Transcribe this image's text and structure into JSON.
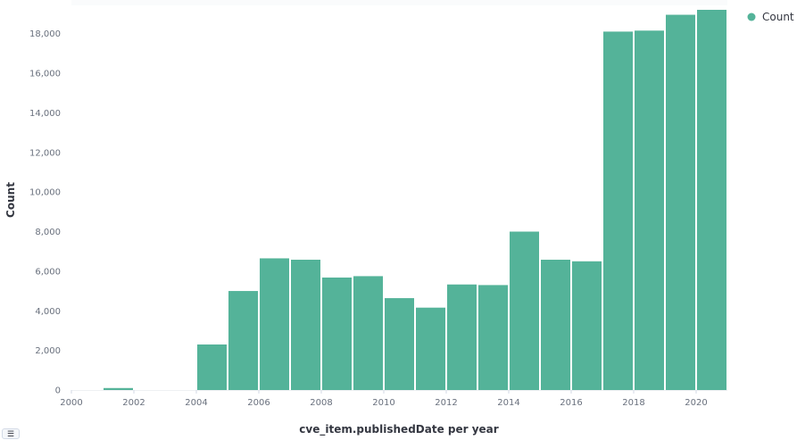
{
  "chart_data": {
    "type": "bar",
    "xlabel": "cve_item.publishedDate per year",
    "ylabel": "Count",
    "x": [
      2001,
      2002,
      2003,
      2004,
      2005,
      2006,
      2007,
      2008,
      2009,
      2010,
      2011,
      2012,
      2013,
      2014,
      2015,
      2016,
      2017,
      2018,
      2019,
      2020
    ],
    "series": [
      {
        "name": "Count",
        "color": "#54b399",
        "values": [
          100,
          0,
          0,
          2300,
          5000,
          6650,
          6580,
          5680,
          5750,
          4640,
          4160,
          5330,
          5300,
          8000,
          6580,
          6500,
          18100,
          18150,
          18950,
          19200
        ]
      }
    ],
    "xlim": [
      2000,
      2021
    ],
    "ylim": [
      0,
      19200
    ],
    "x_ticks": [
      "2000",
      "2002",
      "2004",
      "2006",
      "2008",
      "2010",
      "2012",
      "2014",
      "2016",
      "2018",
      "2020"
    ],
    "y_ticks": [
      "0",
      "2,000",
      "4,000",
      "6,000",
      "8,000",
      "10,000",
      "12,000",
      "14,000",
      "16,000",
      "18,000"
    ],
    "grid": false,
    "legend_position": "top-right"
  },
  "legend": {
    "entries": [
      {
        "label": "Count",
        "color": "#54b399"
      }
    ],
    "toggle_icon": "list-icon",
    "toggle_glyph": "☰"
  }
}
